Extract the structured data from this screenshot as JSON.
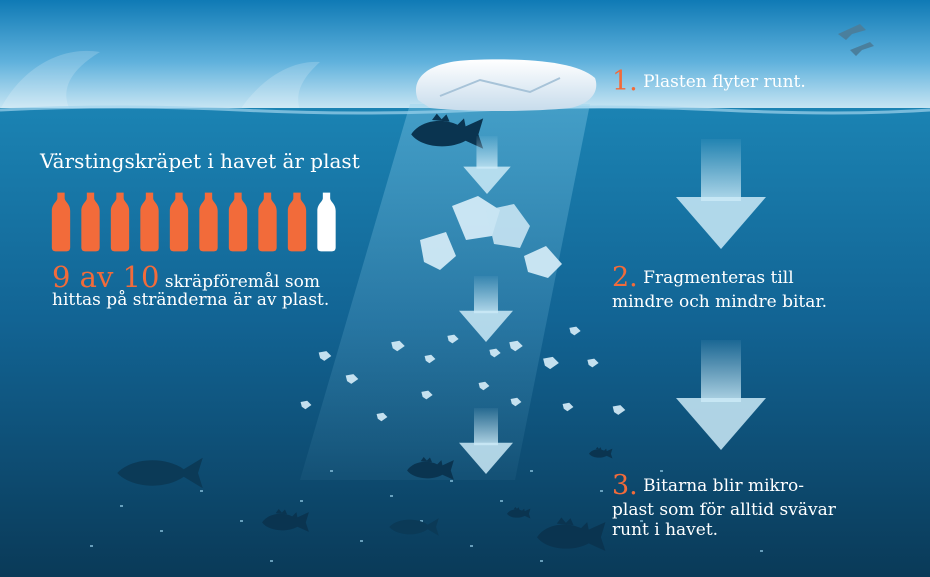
{
  "title": "Värstingskräpet i havet är plast",
  "stat": {
    "number": "9 av 10",
    "text_line1": "skräpföremål som",
    "text_line2": "hittas på stränderna är av plast.",
    "total_bottles": 10,
    "plastic_bottles": 9
  },
  "steps": [
    {
      "number": "1.",
      "line1": "Plasten flyter runt.",
      "line2": "",
      "line3": ""
    },
    {
      "number": "2.",
      "line1": "Fragmenteras till",
      "line2": "mindre och mindre bitar.",
      "line3": ""
    },
    {
      "number": "3.",
      "line1": "Bitarna blir mikro-",
      "line2": "plast som för alltid svävar",
      "line3": "runt i havet."
    }
  ],
  "colors": {
    "accent_orange": "#f26b3a",
    "sky_top": "#0f7ab5",
    "sky_bottom": "#cfe9f5",
    "water_top": "#1a7fae",
    "water_bottom": "#0b3d5c",
    "bottle_white": "#ffffff",
    "arrow": "#c9e9f6"
  },
  "icons": [
    "plastic-bag-icon",
    "fish-icon",
    "bird-icon",
    "arrow-down-icon",
    "bottle-icon"
  ]
}
